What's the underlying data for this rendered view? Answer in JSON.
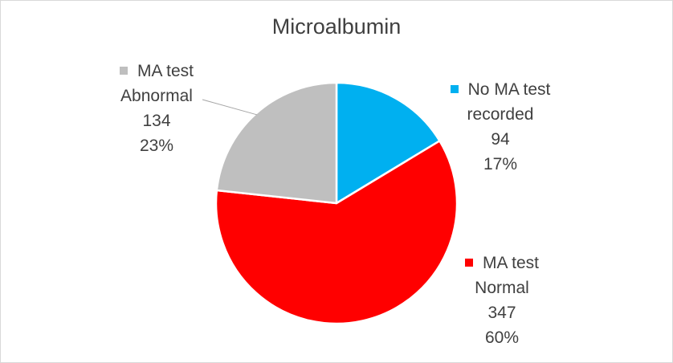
{
  "chart_data": {
    "type": "pie",
    "title": "Microalbumin",
    "slices": [
      {
        "name": "No MA test recorded",
        "label_lines": [
          "No MA test",
          "recorded"
        ],
        "value": 94,
        "percent_label": "17%",
        "color": "#00b0f0"
      },
      {
        "name": "MA test Normal",
        "label_lines": [
          "MA test",
          "Normal"
        ],
        "value": 347,
        "percent_label": "60%",
        "color": "#ff0000"
      },
      {
        "name": "MA test Abnormal",
        "label_lines": [
          "MA test",
          "Abnormal"
        ],
        "value": 134,
        "percent_label": "23%",
        "color": "#bfbfbf"
      }
    ],
    "legend": "none",
    "start_angle_deg": 0,
    "direction": "clockwise"
  }
}
